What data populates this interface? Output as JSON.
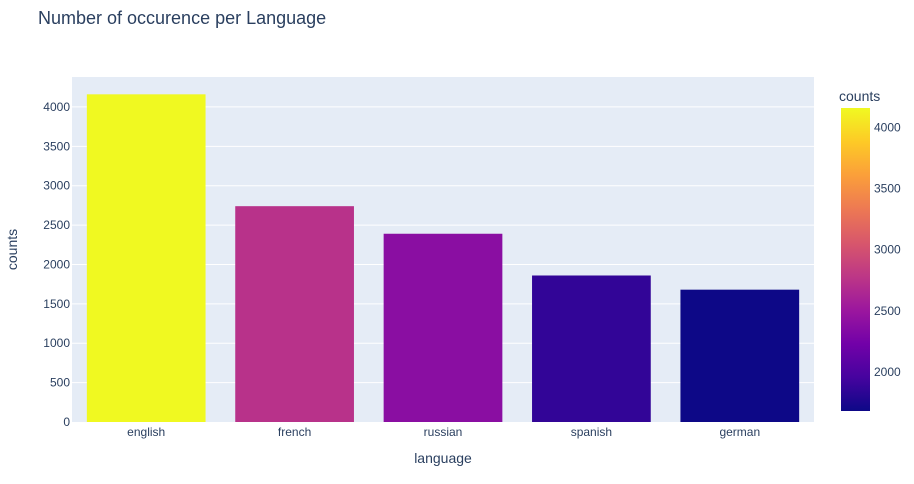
{
  "chart_data": {
    "type": "bar",
    "title": "Number of occurence per Language",
    "xlabel": "language",
    "ylabel": "counts",
    "categories": [
      "english",
      "french",
      "russian",
      "spanish",
      "german"
    ],
    "values": [
      4160,
      2740,
      2390,
      1860,
      1680
    ],
    "ylim": [
      0,
      4380
    ],
    "yticks": [
      0,
      500,
      1000,
      1500,
      2000,
      2500,
      3000,
      3500,
      4000
    ],
    "grid": true,
    "colorbar": {
      "title": "counts",
      "range": [
        1680,
        4160
      ],
      "ticks": [
        2000,
        2500,
        3000,
        3500,
        4000
      ],
      "colorscale": [
        "#0d0887",
        "#46039f",
        "#7201a8",
        "#9c179e",
        "#bd3786",
        "#d8576b",
        "#ed7953",
        "#fb9f3a",
        "#fdca26",
        "#f0f921"
      ]
    },
    "colors": {
      "plot_bg": "#e5ecf6",
      "grid": "#ffffff",
      "text": "#2a3f5f"
    }
  }
}
